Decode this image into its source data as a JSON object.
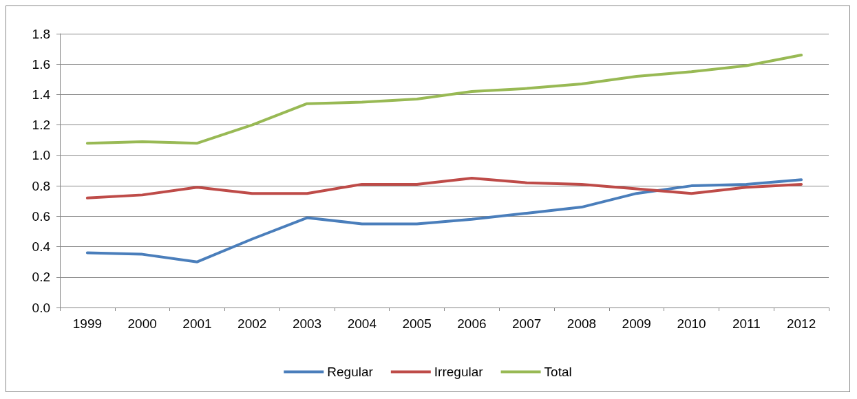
{
  "chart_data": {
    "type": "line",
    "categories": [
      "1999",
      "2000",
      "2001",
      "2002",
      "2003",
      "2004",
      "2005",
      "2006",
      "2007",
      "2008",
      "2009",
      "2010",
      "2011",
      "2012"
    ],
    "series": [
      {
        "name": "Regular",
        "color": "#4a7ebb",
        "values": [
          0.36,
          0.35,
          0.3,
          0.45,
          0.59,
          0.55,
          0.55,
          0.58,
          0.62,
          0.66,
          0.75,
          0.8,
          0.81,
          0.84
        ]
      },
      {
        "name": "Irregular",
        "color": "#be4b48",
        "values": [
          0.72,
          0.74,
          0.79,
          0.75,
          0.75,
          0.81,
          0.81,
          0.85,
          0.82,
          0.81,
          0.78,
          0.75,
          0.79,
          0.81
        ]
      },
      {
        "name": "Total",
        "color": "#98b954",
        "values": [
          1.08,
          1.09,
          1.08,
          1.2,
          1.34,
          1.35,
          1.37,
          1.42,
          1.44,
          1.47,
          1.52,
          1.55,
          1.59,
          1.66
        ]
      }
    ],
    "ylim": [
      0,
      1.8
    ],
    "yticks": [
      {
        "value": 0,
        "label": "0.0"
      },
      {
        "value": 0.2,
        "label": "0.2"
      },
      {
        "value": 0.4,
        "label": "0.4"
      },
      {
        "value": 0.6,
        "label": "0.6"
      },
      {
        "value": 0.8,
        "label": "0.8"
      },
      {
        "value": 1,
        "label": "1.0"
      },
      {
        "value": 1.2,
        "label": "1.2"
      },
      {
        "value": 1.4,
        "label": "1.4"
      },
      {
        "value": 1.6,
        "label": "1.6"
      },
      {
        "value": 1.8,
        "label": "1.8"
      }
    ],
    "grid": "y",
    "legend": "bottom",
    "marker": "none",
    "line_style": "solid"
  }
}
